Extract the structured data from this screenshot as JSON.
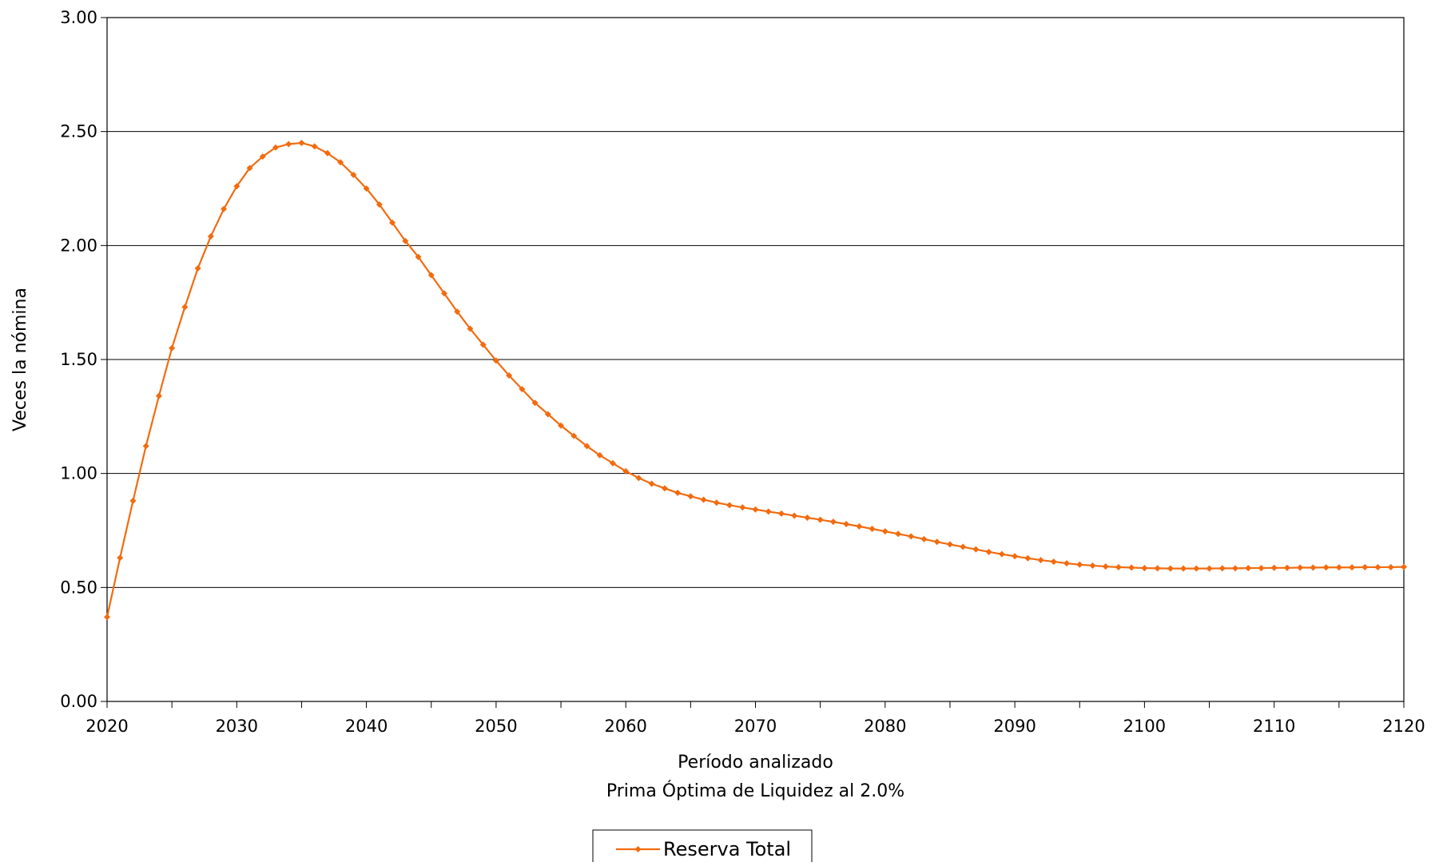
{
  "chart_data": {
    "type": "line",
    "title": "",
    "xlabel": "Período analizado",
    "subtitle": "Prima Óptima de Liquidez al 2.0%",
    "ylabel": "Veces la nómina",
    "xlim": [
      2020,
      2120
    ],
    "ylim": [
      0,
      3
    ],
    "x_ticks": [
      "2020",
      "2030",
      "2040",
      "2050",
      "2060",
      "2070",
      "2080",
      "2090",
      "2100",
      "2110",
      "2120"
    ],
    "y_ticks": [
      "0.00",
      "0.50",
      "1.00",
      "1.50",
      "2.00",
      "2.50",
      "3.00"
    ],
    "grid": "horizontal",
    "legend": "bottom-center",
    "series": [
      {
        "name": "Reserva Total",
        "color": "#F26B0F",
        "x_start": 2020,
        "x_step": 1,
        "values": [
          0.37,
          0.63,
          0.88,
          1.12,
          1.34,
          1.55,
          1.73,
          1.9,
          2.04,
          2.16,
          2.26,
          2.34,
          2.39,
          2.43,
          2.445,
          2.45,
          2.435,
          2.405,
          2.365,
          2.31,
          2.25,
          2.18,
          2.1,
          2.02,
          1.95,
          1.87,
          1.79,
          1.71,
          1.635,
          1.565,
          1.495,
          1.43,
          1.37,
          1.31,
          1.26,
          1.21,
          1.165,
          1.12,
          1.08,
          1.045,
          1.01,
          0.98,
          0.955,
          0.935,
          0.915,
          0.9,
          0.885,
          0.872,
          0.861,
          0.851,
          0.842,
          0.833,
          0.824,
          0.815,
          0.806,
          0.797,
          0.788,
          0.778,
          0.768,
          0.757,
          0.746,
          0.735,
          0.724,
          0.712,
          0.7,
          0.689,
          0.678,
          0.667,
          0.656,
          0.646,
          0.637,
          0.628,
          0.62,
          0.613,
          0.606,
          0.6,
          0.596,
          0.592,
          0.589,
          0.587,
          0.585,
          0.584,
          0.583,
          0.583,
          0.583,
          0.583,
          0.584,
          0.584,
          0.585,
          0.585,
          0.586,
          0.586,
          0.587,
          0.587,
          0.588,
          0.588,
          0.588,
          0.589,
          0.589,
          0.589,
          0.59
        ]
      }
    ]
  }
}
